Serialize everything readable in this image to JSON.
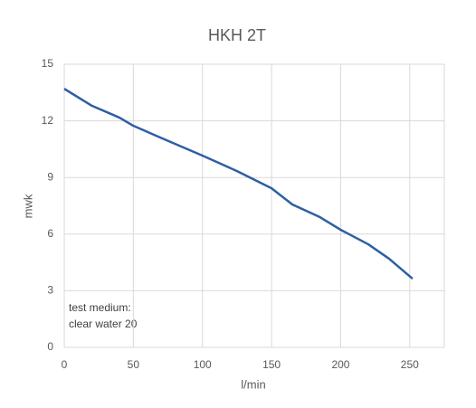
{
  "chart_data": {
    "type": "line",
    "title": "HKH 2T",
    "x_label": "l/min",
    "y_label": "mwk",
    "annotation": [
      "test medium:",
      "clear water 20"
    ],
    "x": [
      0,
      20,
      40,
      50,
      70,
      100,
      125,
      150,
      165,
      185,
      200,
      220,
      235,
      252
    ],
    "series": [
      {
        "name": "HKH 2T",
        "color": "#2e5fa3",
        "values": [
          13.7,
          12.8,
          12.17,
          11.74,
          11.1,
          10.16,
          9.34,
          8.43,
          7.57,
          6.9,
          6.23,
          5.46,
          4.7,
          3.64
        ]
      }
    ],
    "xlim": [
      0,
      275
    ],
    "xticks": [
      0,
      50,
      100,
      150,
      200,
      250
    ],
    "ylim": [
      0,
      15
    ],
    "yticks": [
      0,
      3,
      6,
      9,
      12,
      15
    ],
    "grid": true
  }
}
